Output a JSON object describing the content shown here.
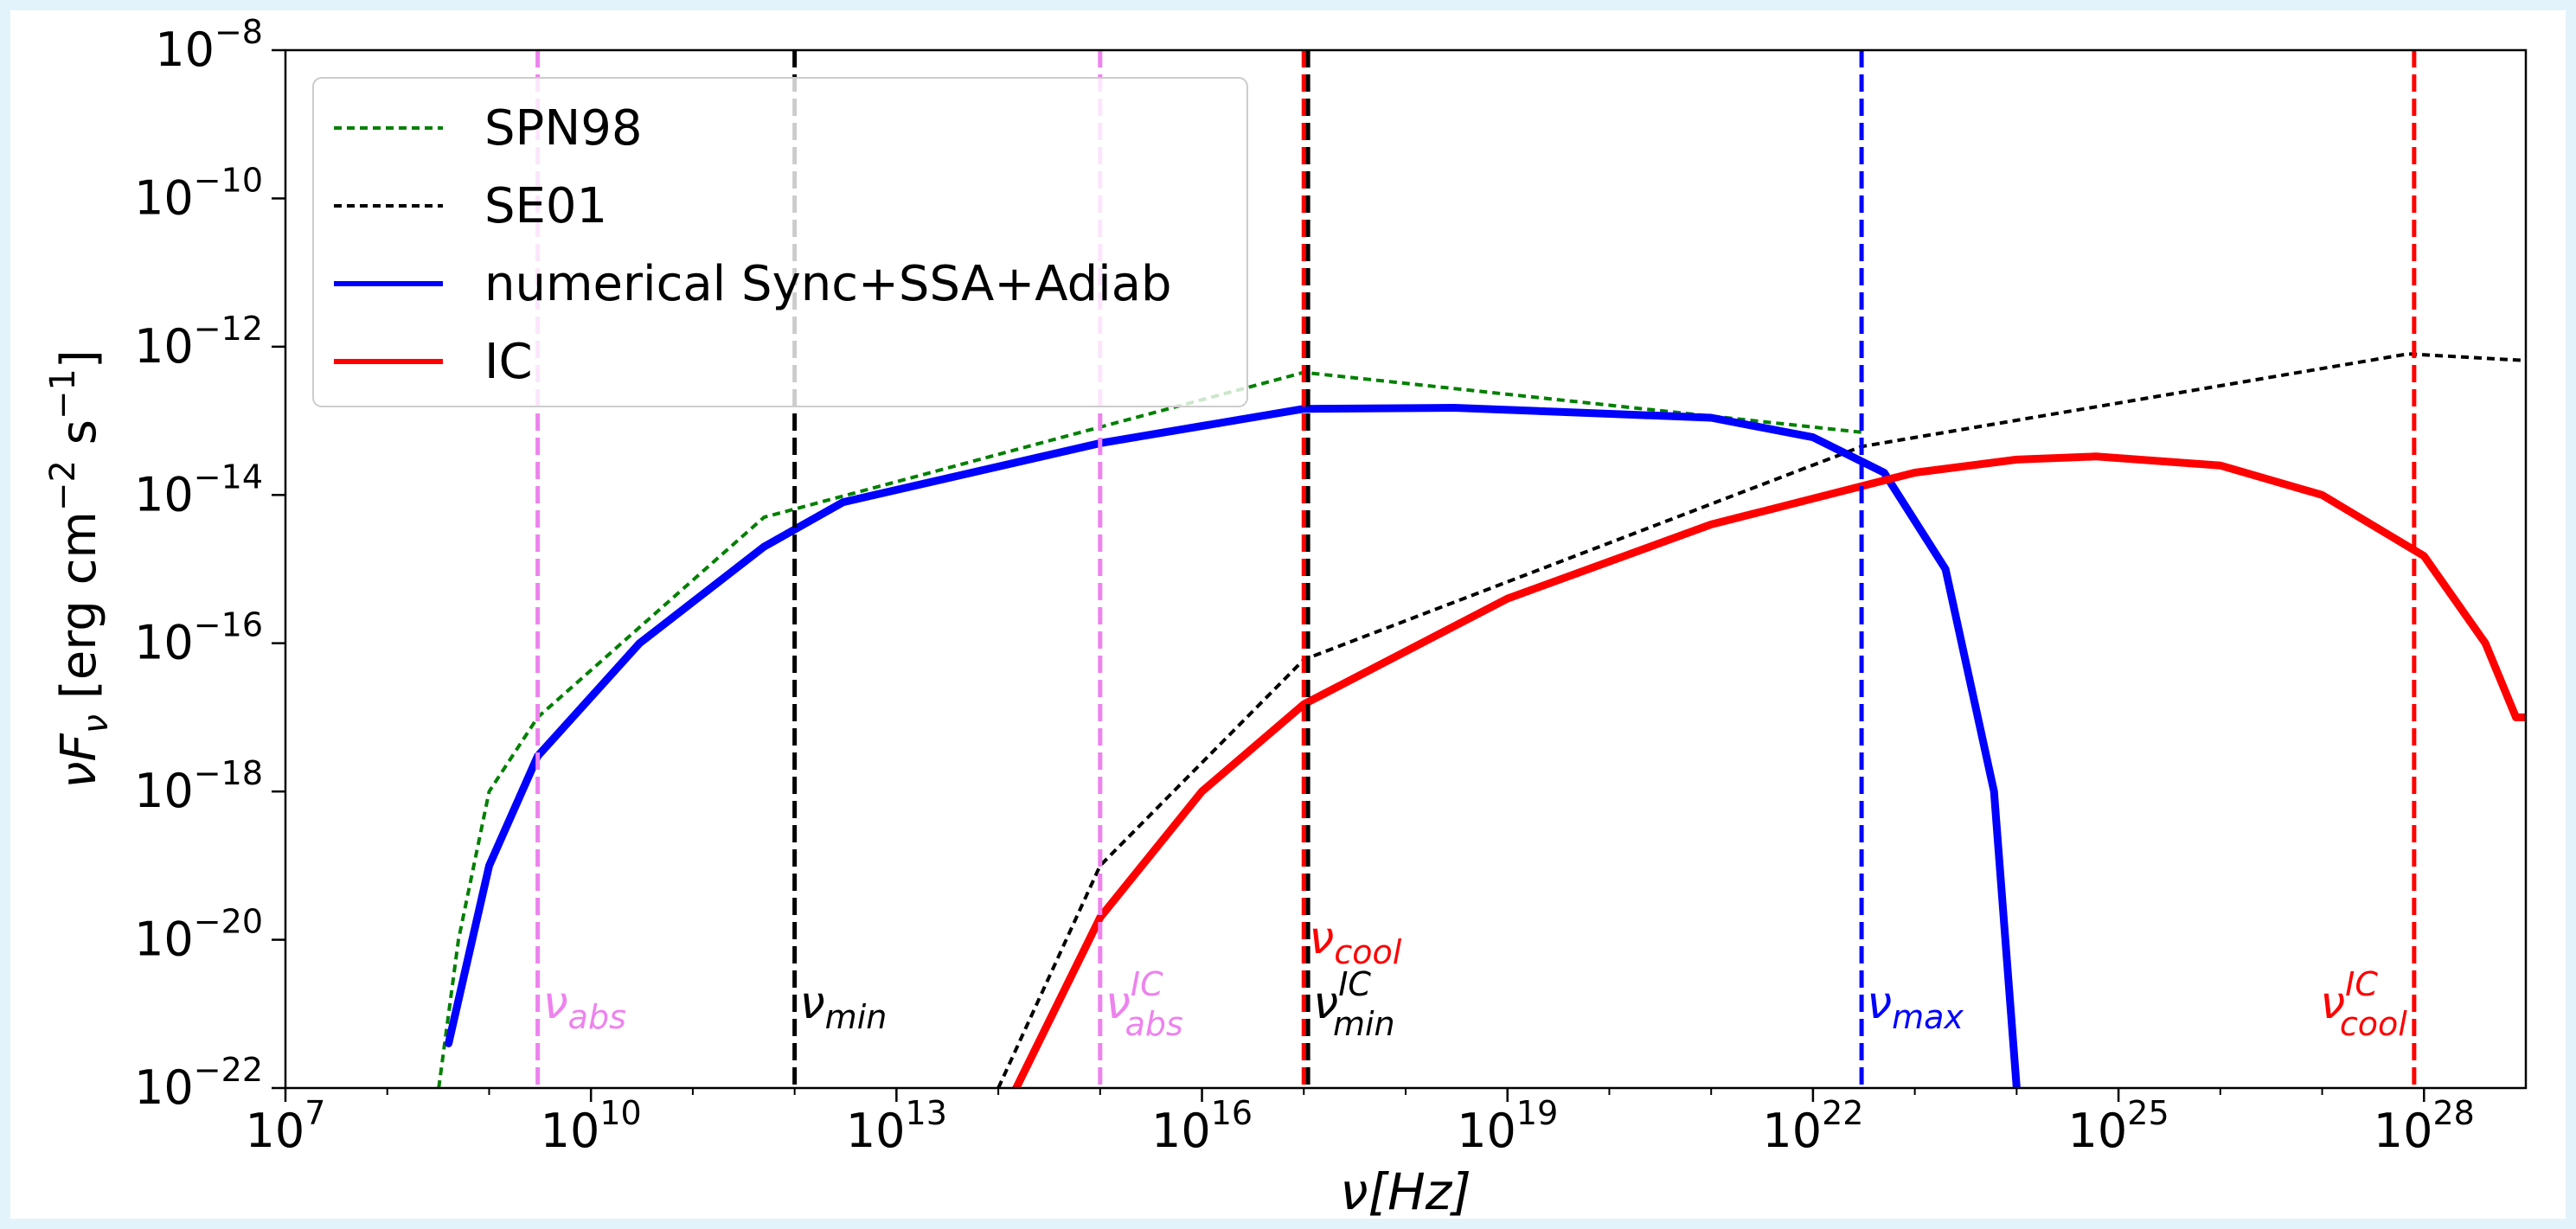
{
  "chart_data": {
    "type": "line",
    "xlabel": "ν[Hz]",
    "ylabel": "νF_ν [erg cm^-2 s^-1]",
    "x_scale": "log",
    "y_scale": "log",
    "xlim": [
      10000000.0,
      1e+29
    ],
    "ylim": [
      1e-22,
      1e-08
    ],
    "grid": false,
    "legend_position": "top-left",
    "x_ticks": [
      {
        "base": "10",
        "exp": "7",
        "value": 10000000.0
      },
      {
        "base": "10",
        "exp": "10",
        "value": 10000000000.0
      },
      {
        "base": "10",
        "exp": "13",
        "value": 10000000000000.0
      },
      {
        "base": "10",
        "exp": "16",
        "value": 1e+16
      },
      {
        "base": "10",
        "exp": "19",
        "value": 1e+19
      },
      {
        "base": "10",
        "exp": "22",
        "value": 1e+22
      },
      {
        "base": "10",
        "exp": "25",
        "value": 1e+25
      },
      {
        "base": "10",
        "exp": "28",
        "value": 1e+28
      }
    ],
    "y_ticks": [
      {
        "base": "10",
        "exp": "−8",
        "value": 1e-08
      },
      {
        "base": "10",
        "exp": "−10",
        "value": 1e-10
      },
      {
        "base": "10",
        "exp": "−12",
        "value": 1e-12
      },
      {
        "base": "10",
        "exp": "−14",
        "value": 1e-14
      },
      {
        "base": "10",
        "exp": "−16",
        "value": 1e-16
      },
      {
        "base": "10",
        "exp": "−18",
        "value": 1e-18
      },
      {
        "base": "10",
        "exp": "−20",
        "value": 1e-20
      },
      {
        "base": "10",
        "exp": "−22",
        "value": 1e-22
      }
    ],
    "series": [
      {
        "name": "SPN98",
        "color": "#008000",
        "style": "dotted",
        "x": [
          320000000.0,
          500000000.0,
          1000000000.0,
          3000000000.0,
          500000000000.0,
          1e+17,
          3e+22
        ],
        "y": [
          1e-22,
          1e-20,
          1e-18,
          1e-17,
          5e-15,
          4.5e-13,
          7e-14
        ]
      },
      {
        "name": "SE01",
        "color": "#000000",
        "style": "dotted",
        "x": [
          100000000000000.0,
          1000000000000000.0,
          1e+17,
          3e+22,
          7e+27,
          1e+29
        ],
        "y": [
          1e-22,
          1e-19,
          6e-17,
          4.5e-14,
          8e-13,
          6.5e-13
        ]
      },
      {
        "name": "numerical Sync+SSA+Adiab",
        "color": "#0000ff",
        "style": "solid",
        "x": [
          400000000.0,
          1000000000.0,
          3000000000.0,
          30000000000.0,
          500000000000.0,
          3000000000000.0,
          1000000000000000.0,
          1e+17,
          3e+18,
          1e+21,
          1e+22,
          5e+22,
          2e+23,
          6e+23,
          1e+24
        ],
        "y": [
          4e-22,
          1e-19,
          3e-18,
          1e-16,
          2e-15,
          8e-15,
          5e-14,
          1.45e-13,
          1.5e-13,
          1.1e-13,
          6e-14,
          2e-14,
          1e-15,
          1e-18,
          1e-22
        ]
      },
      {
        "name": "IC",
        "color": "#ff0000",
        "style": "solid",
        "x": [
          150000000000000.0,
          1000000000000000.0,
          1e+16,
          1e+17,
          1e+19,
          1e+21,
          1e+23,
          1e+24,
          6e+24,
          1e+26,
          1e+27,
          1e+28,
          4e+28,
          8e+28,
          1e+29
        ],
        "y": [
          1e-22,
          2e-20,
          1e-18,
          1.5e-17,
          4e-16,
          4e-15,
          2e-14,
          3e-14,
          3.3e-14,
          2.5e-14,
          1e-14,
          1.5e-15,
          1e-16,
          1e-17,
          1e-17
        ]
      }
    ],
    "vertical_lines": [
      {
        "x": 3000000000.0,
        "color": "#ee82ee",
        "label_main": "ν",
        "label_sub": "abs",
        "label_sup": "",
        "label_row": 2
      },
      {
        "x": 1000000000000.0,
        "color": "#000000",
        "label_main": "ν",
        "label_sub": "min",
        "label_sup": "",
        "label_row": 2
      },
      {
        "x": 1000000000000000.0,
        "color": "#ee82ee",
        "label_main": "ν",
        "label_sub": "abs",
        "label_sup": "IC",
        "label_row": 2
      },
      {
        "x": 1e+17,
        "color": "#ff0000",
        "label_main": "ν",
        "label_sub": "cool",
        "label_sup": "",
        "label_row": 1
      },
      {
        "x": 1.1e+17,
        "color": "#000000",
        "label_main": "ν",
        "label_sub": "min",
        "label_sup": "IC",
        "label_row": 2
      },
      {
        "x": 3e+22,
        "color": "#0000ff",
        "label_main": "ν",
        "label_sub": "max",
        "label_sup": "",
        "label_row": 2
      },
      {
        "x": 8e+27,
        "color": "#ff0000",
        "label_main": "ν",
        "label_sub": "cool",
        "label_sup": "IC",
        "label_row": 2,
        "label_side": "left"
      }
    ]
  }
}
